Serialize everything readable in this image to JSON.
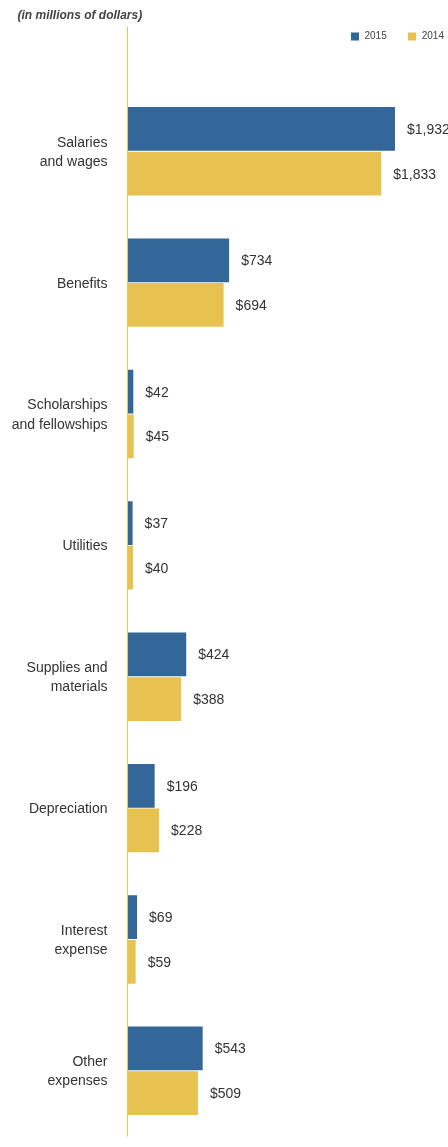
{
  "chart_data": {
    "type": "bar",
    "orientation": "horizontal",
    "title": "(in millions of dollars)",
    "categories": [
      "Salaries\nand wages",
      "Benefits",
      "Scholarships\nand fellowships",
      "Utilities",
      "Supplies and\nmaterials",
      "Depreciation",
      "Interest\nexpense",
      "Other\nexpenses"
    ],
    "series": [
      {
        "name": "2015",
        "color": "#336699",
        "values": [
          1932,
          734,
          42,
          37,
          424,
          196,
          69,
          543
        ],
        "value_labels": [
          "$1,932",
          "$734",
          "$42",
          "$37",
          "$424",
          "$196",
          "$69",
          "$543"
        ]
      },
      {
        "name": "2014",
        "color": "#e8c250",
        "values": [
          1833,
          694,
          45,
          40,
          388,
          228,
          59,
          509
        ],
        "value_labels": [
          "$1,833",
          "$694",
          "$45",
          "$40",
          "$388",
          "$228",
          "$59",
          "$509"
        ]
      }
    ],
    "legend": "top right",
    "grid": false
  }
}
